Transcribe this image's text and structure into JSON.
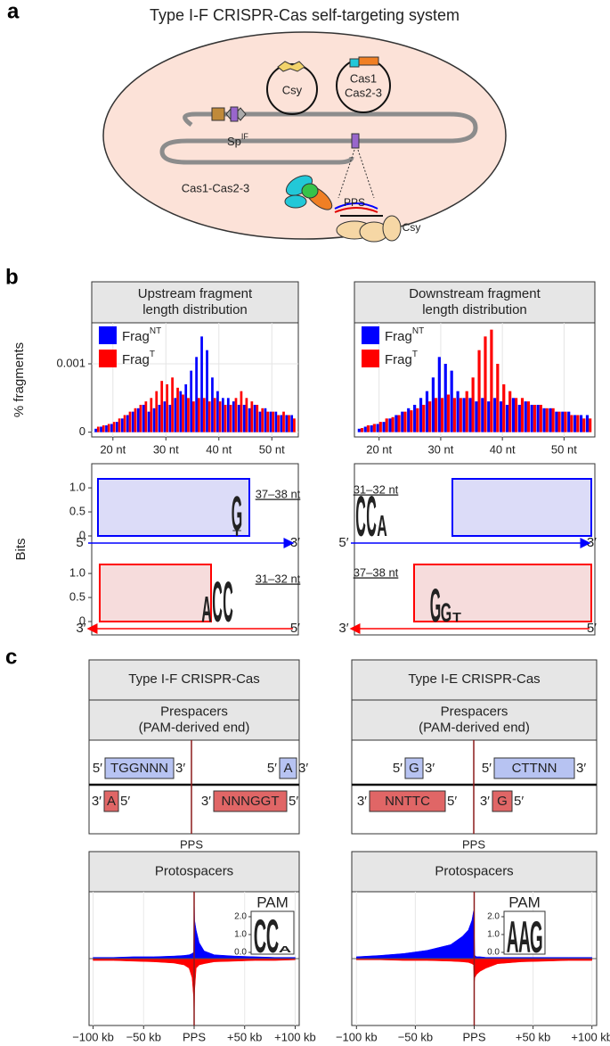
{
  "panel_labels": [
    "a",
    "b",
    "c"
  ],
  "panel_a": {
    "title": "Type I-F CRISPR-Cas self-targeting system",
    "labels": {
      "csy_plasmid": "Csy",
      "cas_plasmid_1": "Cas1",
      "cas_plasmid_2": "Cas2-3",
      "spacer": "Sp",
      "spacer_sup": "IF",
      "complex": "Cas1-Cas2-3",
      "pps": "PPS",
      "csy_complex": "Csy"
    }
  },
  "chart_data": [
    {
      "type": "bar",
      "title": [
        "Upstream fragment",
        "length distribution"
      ],
      "y_label": "% fragments",
      "x": [
        17,
        18,
        19,
        20,
        21,
        22,
        23,
        24,
        25,
        26,
        27,
        28,
        29,
        30,
        31,
        32,
        33,
        34,
        35,
        36,
        37,
        38,
        39,
        40,
        41,
        42,
        43,
        44,
        45,
        46,
        47,
        48,
        49,
        50,
        51,
        52,
        53,
        54
      ],
      "series": [
        {
          "name": "Frag",
          "name_sup": "NT",
          "color": "#0000ff",
          "values": [
            5e-05,
            8e-05,
            0.0001,
            0.00012,
            0.00015,
            0.0002,
            0.00025,
            0.0003,
            0.00035,
            0.0004,
            0.0003,
            0.00035,
            0.0004,
            0.00045,
            0.0004,
            0.0005,
            0.0006,
            0.0007,
            0.0009,
            0.0011,
            0.0014,
            0.0012,
            0.0008,
            0.0006,
            0.0005,
            0.0005,
            0.00045,
            0.0004,
            0.0004,
            0.00035,
            0.0004,
            0.0003,
            0.00035,
            0.0003,
            0.0003,
            0.00025,
            0.00025,
            0.00025
          ]
        },
        {
          "name": "Frag",
          "name_sup": "T",
          "color": "#ff0000",
          "values": [
            8e-05,
            0.0001,
            0.00012,
            0.00015,
            0.0002,
            0.00025,
            0.0003,
            0.00035,
            0.0004,
            0.00045,
            0.0005,
            0.0006,
            0.00075,
            0.0007,
            0.0008,
            0.00065,
            0.00055,
            0.0005,
            0.00045,
            0.0005,
            0.0005,
            0.00045,
            0.0005,
            0.00045,
            0.0004,
            0.0004,
            0.0005,
            0.0006,
            0.0005,
            0.00045,
            0.0004,
            0.00035,
            0.0003,
            0.0003,
            0.00025,
            0.0003,
            0.00025,
            0.0002
          ]
        }
      ],
      "xlim": [
        16,
        55
      ],
      "xticks": [
        {
          "value": 20,
          "label": "20 nt"
        },
        {
          "value": 30,
          "label": "30 nt"
        },
        {
          "value": 40,
          "label": "40 nt"
        },
        {
          "value": 50,
          "label": "50 nt"
        }
      ],
      "ylim": [
        -7e-05,
        0.0016
      ],
      "yticks": [
        0,
        0.001
      ],
      "grid": true
    },
    {
      "type": "bar",
      "title": [
        "Downstream fragment",
        "length distribution"
      ],
      "x": [
        17,
        18,
        19,
        20,
        21,
        22,
        23,
        24,
        25,
        26,
        27,
        28,
        29,
        30,
        31,
        32,
        33,
        34,
        35,
        36,
        37,
        38,
        39,
        40,
        41,
        42,
        43,
        44,
        45,
        46,
        47,
        48,
        49,
        50,
        51,
        52,
        53,
        54
      ],
      "series": [
        {
          "name": "Frag",
          "name_sup": "NT",
          "color": "#0000ff",
          "values": [
            5e-05,
            8e-05,
            0.0001,
            0.00012,
            0.00015,
            0.0002,
            0.00025,
            0.0003,
            0.00035,
            0.0004,
            0.0005,
            0.0006,
            0.0008,
            0.0011,
            0.001,
            0.0009,
            0.0006,
            0.0005,
            0.0005,
            0.00045,
            0.0005,
            0.00045,
            0.0005,
            0.00045,
            0.0004,
            0.0005,
            0.0004,
            0.00045,
            0.0004,
            0.0004,
            0.00035,
            0.00035,
            0.0003,
            0.0003,
            0.0003,
            0.00025,
            0.00025,
            0.00025
          ]
        },
        {
          "name": "Frag",
          "name_sup": "T",
          "color": "#ff0000",
          "values": [
            6e-05,
            0.0001,
            0.00012,
            0.00015,
            0.0002,
            0.00022,
            0.00025,
            0.0003,
            0.00032,
            0.00035,
            0.0004,
            0.00045,
            0.0005,
            0.0005,
            0.00055,
            0.0005,
            0.0005,
            0.0006,
            0.0008,
            0.0012,
            0.0014,
            0.0015,
            0.001,
            0.0007,
            0.0006,
            0.0005,
            0.0005,
            0.00045,
            0.0004,
            0.0004,
            0.00035,
            0.00035,
            0.0003,
            0.0003,
            0.00025,
            0.00025,
            0.0002,
            0.0002
          ]
        }
      ],
      "xlim": [
        16,
        55
      ],
      "xticks": [
        {
          "value": 20,
          "label": "20 nt"
        },
        {
          "value": 30,
          "label": "30 nt"
        },
        {
          "value": 40,
          "label": "40 nt"
        },
        {
          "value": 50,
          "label": "50 nt"
        }
      ],
      "ylim": [
        -7e-05,
        0.0016
      ],
      "grid": true
    },
    {
      "type": "logo",
      "y_label": "Bits",
      "ylim": [
        0,
        1.15
      ],
      "yticks": [
        0,
        0.5,
        {
          "value": 1,
          "label": "1.0"
        }
      ],
      "logos": [
        {
          "range_label": "37–38 nt",
          "color": "#0000ff",
          "fill": "#dcdcf8",
          "ends": [
            "5′",
            "3′"
          ],
          "columns": [
            [
              {
                "char": "T",
                "bits": 0.12
              },
              {
                "char": "G",
                "bits": 0.85
              }
            ]
          ]
        },
        {
          "range_label": "31–32 nt",
          "color": "#ff0000",
          "fill": "#f6dcdc",
          "ends": [
            "3′",
            "5′"
          ],
          "columns": [
            [
              {
                "char": "A",
                "bits": 0.55
              }
            ],
            [
              {
                "char": "C",
                "bits": 0.85
              }
            ],
            [
              {
                "char": "C",
                "bits": 0.85
              }
            ]
          ]
        }
      ]
    },
    {
      "type": "logo",
      "ylim": [
        0,
        1.15
      ],
      "logos": [
        {
          "range_label": "31–32 nt",
          "color": "#0000ff",
          "fill": "#dcdcf8",
          "ends": [
            "5′",
            "3′"
          ],
          "columns": [
            [
              {
                "char": "C",
                "bits": 0.85
              }
            ],
            [
              {
                "char": "C",
                "bits": 0.85
              }
            ],
            [
              {
                "char": "A",
                "bits": 0.45
              }
            ]
          ]
        },
        {
          "range_label": "37–38 nt",
          "color": "#ff0000",
          "fill": "#f6dcdc",
          "ends": [
            "3′",
            "5′"
          ],
          "columns": [
            [
              {
                "char": "G",
                "bits": 0.7
              }
            ],
            [
              {
                "char": "G",
                "bits": 0.4
              }
            ],
            [
              {
                "char": "T",
                "bits": 0.2
              }
            ]
          ]
        }
      ]
    },
    {
      "type": "area",
      "title": "Protospacers",
      "x": [
        -100,
        -80,
        -60,
        -40,
        -20,
        -10,
        -5,
        -2,
        -0.5,
        0,
        0.5,
        2,
        5,
        10,
        20,
        40,
        60,
        80,
        100
      ],
      "series": [
        {
          "color": "#0000ff",
          "values": [
            0.02,
            0.02,
            0.03,
            0.03,
            0.04,
            0.05,
            0.06,
            0.08,
            0.1,
            1,
            0.6,
            0.45,
            0.25,
            0.12,
            0.06,
            0.04,
            0.03,
            0.02,
            0.02
          ]
        },
        {
          "color": "#ff0000",
          "values": [
            -0.03,
            -0.03,
            -0.04,
            -0.05,
            -0.07,
            -0.1,
            -0.15,
            -0.3,
            -0.6,
            -1,
            -0.5,
            -0.15,
            -0.1,
            -0.08,
            -0.05,
            -0.04,
            -0.03,
            -0.03,
            -0.02
          ]
        }
      ],
      "xlim": [
        -104,
        104
      ],
      "xticks": [
        {
          "value": -100,
          "label": "−100 kb"
        },
        {
          "value": -50,
          "label": "−50 kb"
        },
        {
          "value": 0,
          "label": "PPS"
        },
        {
          "value": 50,
          "label": "+50 kb"
        },
        {
          "value": 100,
          "label": "+100 kb"
        }
      ],
      "ylim": [
        -1.05,
        1.05
      ],
      "grid": true,
      "pam": {
        "title": "PAM",
        "ylim": [
          0,
          2.2
        ],
        "yticks": [
          {
            "value": 0,
            "label": "0.0"
          },
          {
            "value": 1,
            "label": "1.0"
          },
          {
            "value": 2,
            "label": "2.0"
          }
        ],
        "letters": [
          {
            "char": "C",
            "bits": 1.9,
            "color": "#1f5c99"
          },
          {
            "char": "C",
            "bits": 1.9,
            "color": "#1f5c99"
          },
          {
            "char": "A",
            "bits": 0.35,
            "color": "#2ca02c"
          }
        ]
      }
    },
    {
      "type": "area",
      "title": "Protospacers",
      "x": [
        -100,
        -80,
        -60,
        -40,
        -20,
        -10,
        -5,
        -2,
        -0.5,
        0,
        0.5,
        2,
        5,
        10,
        20,
        40,
        60,
        80,
        100
      ],
      "series": [
        {
          "color": "#0000ff",
          "values": [
            0.03,
            0.05,
            0.08,
            0.13,
            0.22,
            0.35,
            0.45,
            0.6,
            0.75,
            0.5,
            0.05,
            0.03,
            0.03,
            0.02,
            0.02,
            0.02,
            0.02,
            0.02,
            0.02
          ]
        },
        {
          "color": "#ff0000",
          "values": [
            -0.02,
            -0.02,
            -0.03,
            -0.03,
            -0.04,
            -0.05,
            -0.06,
            -0.08,
            -0.1,
            -0.4,
            -0.3,
            -0.25,
            -0.2,
            -0.15,
            -0.08,
            -0.05,
            -0.04,
            -0.03,
            -0.03
          ]
        }
      ],
      "xlim": [
        -104,
        104
      ],
      "xticks": [
        {
          "value": -100,
          "label": "−100 kb"
        },
        {
          "value": -50,
          "label": "−50 kb"
        },
        {
          "value": 0,
          "label": "PPS"
        },
        {
          "value": 50,
          "label": "+50 kb"
        },
        {
          "value": 100,
          "label": "+100 kb"
        }
      ],
      "ylim": [
        -1.05,
        1.05
      ],
      "grid": true,
      "pam": {
        "title": "PAM",
        "ylim": [
          0,
          2.2
        ],
        "yticks": [
          {
            "value": 0,
            "label": "0.0"
          },
          {
            "value": 1,
            "label": "1.0"
          },
          {
            "value": 2,
            "label": "2.0"
          }
        ],
        "letters": [
          {
            "char": "A",
            "bits": 1.8,
            "color": "#2ca02c"
          },
          {
            "char": "A",
            "bits": 1.8,
            "color": "#2ca02c"
          },
          {
            "char": "G",
            "bits": 1.8,
            "color": "#f5a623"
          }
        ]
      }
    }
  ],
  "prespacer_panels": [
    {
      "system": "Type I-F CRISPR-Cas",
      "subtitle": [
        "Prespacers",
        "(PAM-derived end)"
      ],
      "pps": "PPS",
      "top": [
        {
          "left": "5′",
          "seq": "TGGNNN",
          "right": "3′"
        },
        {
          "left": "5′",
          "seq": "A",
          "right": "3′"
        }
      ],
      "bottom": [
        {
          "left": "3′",
          "seq": "A",
          "right": "5′"
        },
        {
          "left": "3′",
          "seq": "NNNGGT",
          "right": "5′"
        }
      ]
    },
    {
      "system": "Type I-E CRISPR-Cas",
      "subtitle": [
        "Prespacers",
        "(PAM-derived end)"
      ],
      "pps": "PPS",
      "top": [
        {
          "left": "5′",
          "seq": "G",
          "right": "3′"
        },
        {
          "left": "5′",
          "seq": "CTTNN",
          "right": "3′"
        }
      ],
      "bottom": [
        {
          "left": "3′",
          "seq": "NNTTC",
          "right": "5′"
        },
        {
          "left": "3′",
          "seq": "G",
          "right": "5′"
        }
      ]
    }
  ]
}
